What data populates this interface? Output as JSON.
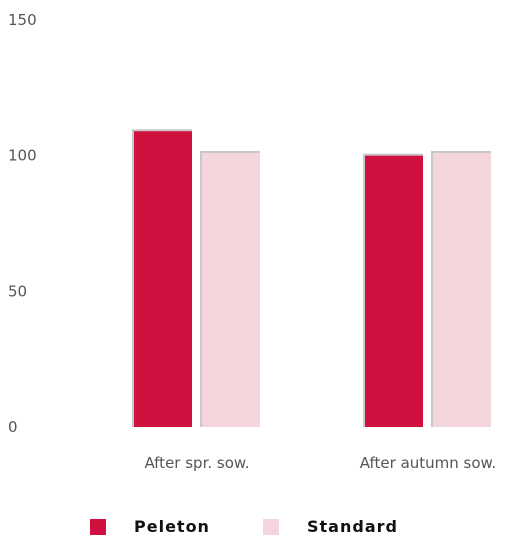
{
  "chart_data": {
    "type": "bar",
    "categories": [
      "After spr. sow.",
      "After autumn sow."
    ],
    "series": [
      {
        "name": "Peleton",
        "values": [
          109,
          100
        ],
        "color": "#d0103f"
      },
      {
        "name": "Standard",
        "values": [
          101,
          101
        ],
        "color": "#f5d5dc"
      }
    ],
    "ylim": [
      0,
      150
    ],
    "yticks": [
      0,
      50,
      100,
      150
    ],
    "grid": false,
    "legend_position": "bottom"
  },
  "colors": {
    "bar_shadow": "#c8c8c8",
    "tick_text": "#555555",
    "legend_text": "#111111"
  }
}
